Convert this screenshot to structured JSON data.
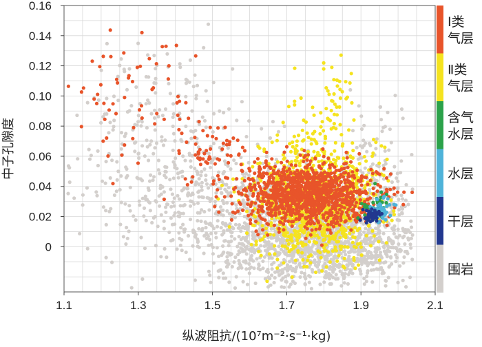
{
  "chart_data": {
    "type": "scatter",
    "title": "",
    "xlabel": "纵波阻抗/(10⁷m⁻²·s⁻¹·kg)",
    "ylabel": "中子孔隙度",
    "xlim": [
      1.1,
      2.1
    ],
    "ylim": [
      -0.03,
      0.16
    ],
    "x_ticks": [
      "1.1",
      "1.3",
      "1.5",
      "1.7",
      "1.9",
      "2.1"
    ],
    "x_tick_values": [
      1.1,
      1.3,
      1.5,
      1.7,
      1.9,
      2.1
    ],
    "y_ticks": [
      "0",
      "0.02",
      "0.04",
      "0.06",
      "0.08",
      "0.10",
      "0.12",
      "0.14",
      "0.16"
    ],
    "y_tick_values": [
      0,
      0.02,
      0.04,
      0.06,
      0.08,
      0.1,
      0.12,
      0.14,
      0.16
    ],
    "grid": true,
    "legend_position": "right",
    "series": [
      {
        "name": "围岩",
        "label_lines": [
          "围岩"
        ],
        "color": "#d3cfcc",
        "clusters": [
          {
            "cx": 1.8,
            "cy": 0.005,
            "sx": 0.14,
            "sy": 0.016,
            "n": 1500
          },
          {
            "cx": 1.55,
            "cy": 0.025,
            "sx": 0.17,
            "sy": 0.02,
            "n": 500
          },
          {
            "cx": 1.35,
            "cy": 0.07,
            "sx": 0.14,
            "sy": 0.03,
            "n": 260
          },
          {
            "cx": 1.95,
            "cy": 0.04,
            "sx": 0.06,
            "sy": 0.025,
            "n": 160
          }
        ]
      },
      {
        "name": "干层",
        "label_lines": [
          "干层"
        ],
        "color": "#22388f",
        "clusters": [
          {
            "cx": 1.93,
            "cy": 0.021,
            "sx": 0.012,
            "sy": 0.002,
            "n": 40
          }
        ]
      },
      {
        "name": "水层",
        "label_lines": [
          "水层"
        ],
        "color": "#4fb3d9",
        "clusters": [
          {
            "cx": 1.955,
            "cy": 0.024,
            "sx": 0.015,
            "sy": 0.004,
            "n": 45
          }
        ]
      },
      {
        "name": "含气水层",
        "label_lines": [
          "含气",
          "水层"
        ],
        "color": "#2ca24a",
        "clusters": [
          {
            "cx": 1.935,
            "cy": 0.027,
            "sx": 0.018,
            "sy": 0.005,
            "n": 35
          }
        ]
      },
      {
        "name": "Ⅱ类气层",
        "label_lines": [
          "Ⅱ类",
          "气层"
        ],
        "color": "#f5e31f",
        "clusters": [
          {
            "cx": 1.78,
            "cy": 0.03,
            "sx": 0.08,
            "sy": 0.018,
            "n": 1100
          },
          {
            "cx": 1.83,
            "cy": 0.1,
            "sx": 0.02,
            "sy": 0.012,
            "n": 40
          },
          {
            "cx": 1.73,
            "cy": 0.08,
            "sx": 0.03,
            "sy": 0.015,
            "n": 30
          }
        ]
      },
      {
        "name": "Ⅰ类气层",
        "label_lines": [
          "Ⅰ类",
          "气层"
        ],
        "color": "#e8542a",
        "clusters": [
          {
            "cx": 1.76,
            "cy": 0.035,
            "sx": 0.09,
            "sy": 0.01,
            "n": 1200
          },
          {
            "cx": 1.3,
            "cy": 0.1,
            "sx": 0.09,
            "sy": 0.025,
            "n": 70
          },
          {
            "cx": 1.5,
            "cy": 0.06,
            "sx": 0.05,
            "sy": 0.012,
            "n": 60
          }
        ]
      }
    ]
  }
}
